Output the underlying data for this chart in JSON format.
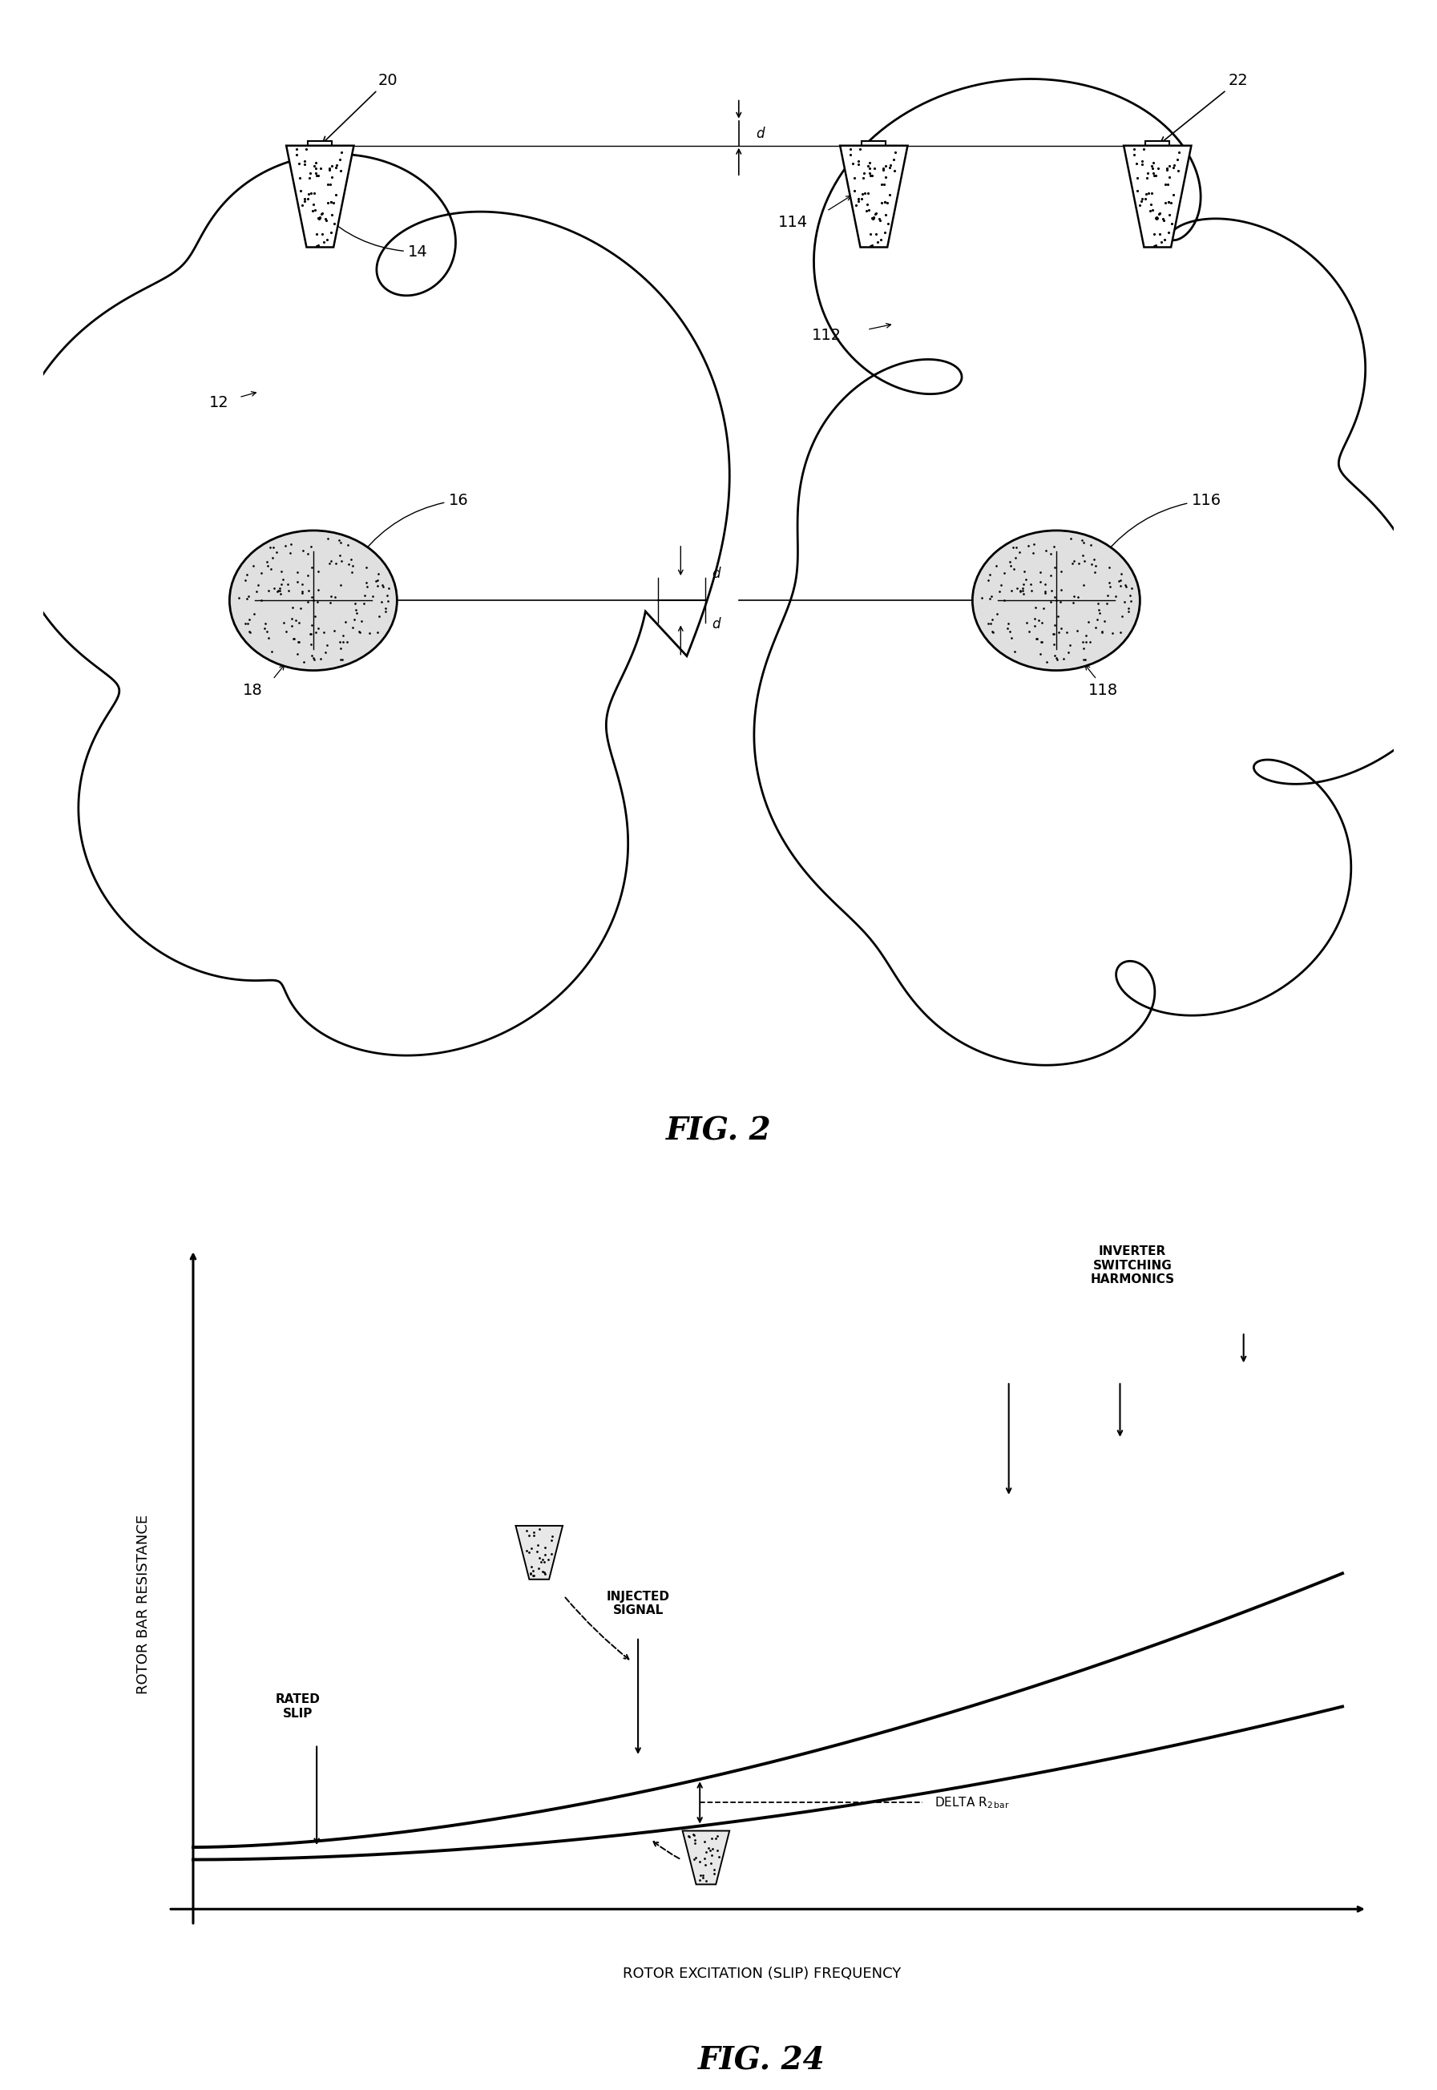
{
  "fig_width": 17.93,
  "fig_height": 26.08,
  "bg_color": "#ffffff",
  "fig2": {
    "title": "FIG. 2",
    "title_fontsize": 28,
    "title_style": "italic"
  },
  "fig24": {
    "title": "FIG. 24",
    "title_fontsize": 28,
    "title_style": "italic",
    "xlabel": "ROTOR EXCITATION (SLIP) FREQUENCY",
    "ylabel": "ROTOR BAR RESISTANCE",
    "label_fontsize": 13
  }
}
